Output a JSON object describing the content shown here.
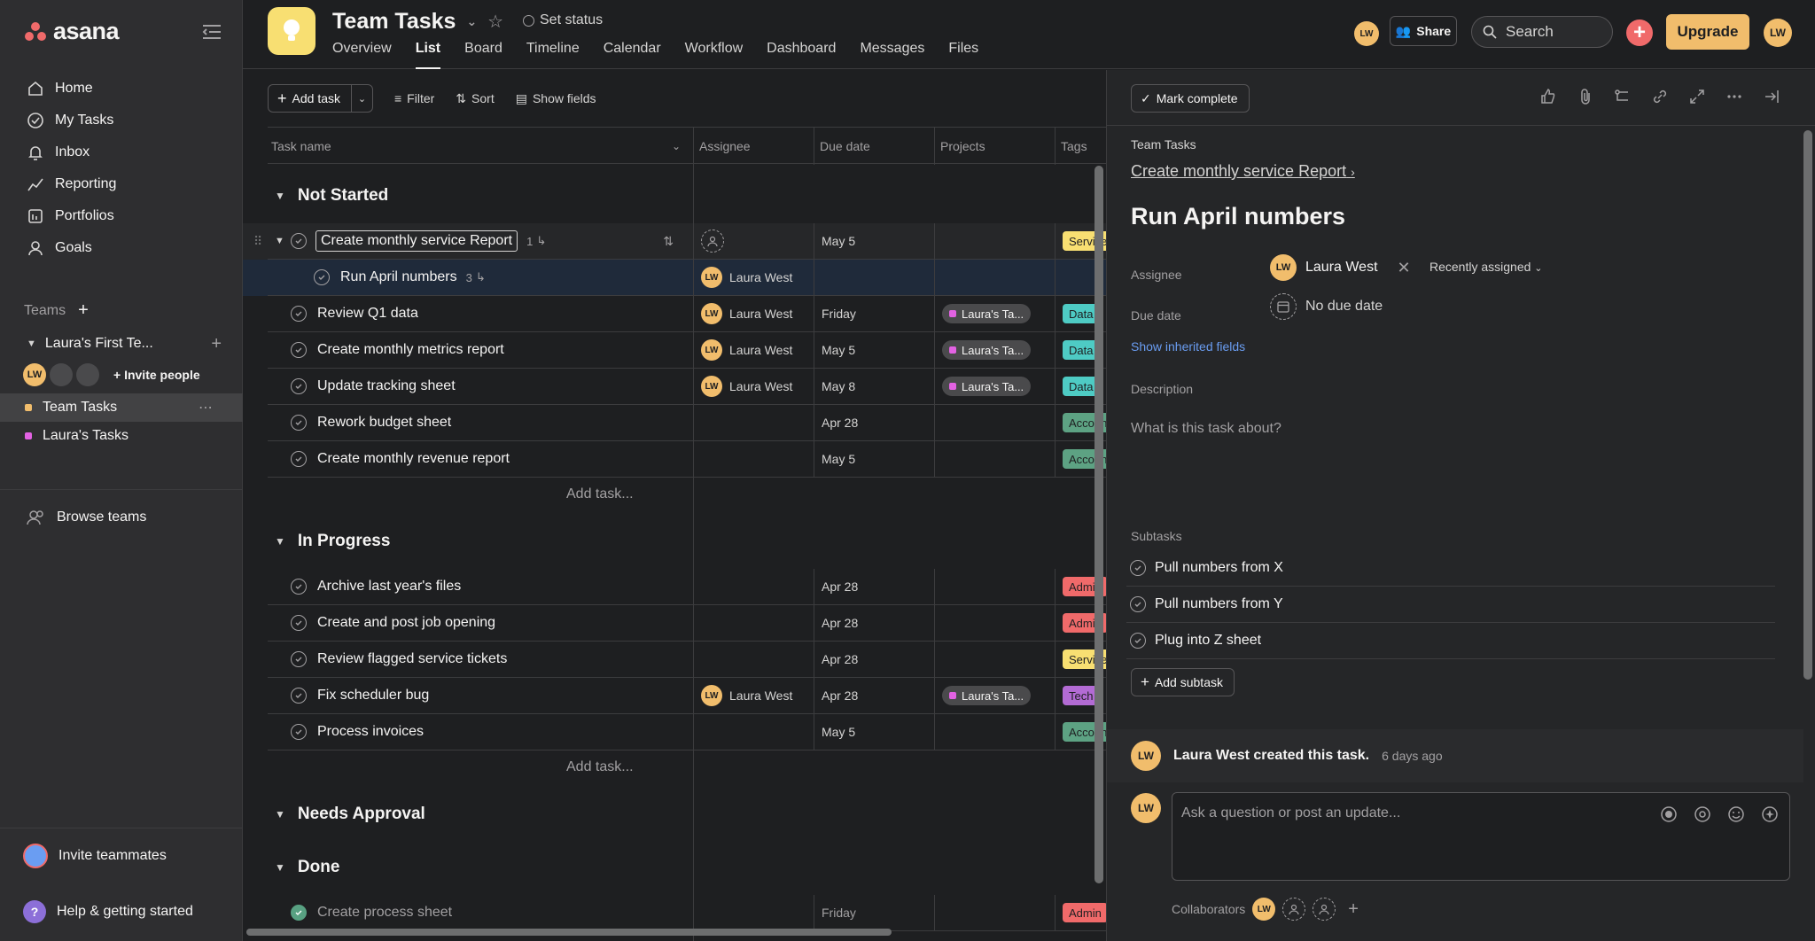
{
  "app": {
    "logo_text": "asana",
    "brand_color": "#f06a6a"
  },
  "sidebar": {
    "nav": [
      {
        "label": "Home",
        "icon": "home-icon"
      },
      {
        "label": "My Tasks",
        "icon": "check-circle-icon"
      },
      {
        "label": "Inbox",
        "icon": "bell-icon"
      },
      {
        "label": "Reporting",
        "icon": "chart-line-icon"
      },
      {
        "label": "Portfolios",
        "icon": "portfolio-icon"
      },
      {
        "label": "Goals",
        "icon": "person-icon"
      }
    ],
    "teams_label": "Teams",
    "team_name": "Laura's First Te...",
    "member_initials": "LW",
    "invite_people": "Invite people",
    "projects": [
      {
        "label": "Team Tasks",
        "color": "#f1bd6c",
        "active": true
      },
      {
        "label": "Laura's Tasks",
        "color": "#e362e3",
        "active": false
      }
    ],
    "browse_teams": "Browse teams",
    "invite_teammates": "Invite teammates",
    "help": "Help & getting started"
  },
  "header": {
    "project_title": "Team Tasks",
    "set_status": "Set status",
    "tabs": [
      "Overview",
      "List",
      "Board",
      "Timeline",
      "Calendar",
      "Workflow",
      "Dashboard",
      "Messages",
      "Files"
    ],
    "active_tab": "List",
    "user_initials": "LW",
    "share": "Share",
    "search_placeholder": "Search",
    "upgrade": "Upgrade"
  },
  "list": {
    "toolbar": {
      "add_task": "Add task",
      "filter": "Filter",
      "sort": "Sort",
      "show_fields": "Show fields"
    },
    "columns": [
      "Task name",
      "Assignee",
      "Due date",
      "Projects",
      "Tags"
    ],
    "add_task_row": "Add task...",
    "sections": [
      {
        "name": "Not Started",
        "tasks": [
          {
            "name": "Create monthly service Report",
            "subtasks": "1",
            "assignee": "",
            "due": "May 5",
            "project": "",
            "tag": "Service",
            "tag_color": "#f8df72"
          },
          {
            "name": "Run April numbers",
            "subtasks": "3",
            "assignee": "Laura West",
            "due": "",
            "project": "",
            "tag": "",
            "tag_color": ""
          },
          {
            "name": "Review Q1 data",
            "subtasks": "",
            "assignee": "Laura West",
            "due": "Friday",
            "project": "Laura's Ta...",
            "tag": "Data",
            "tag_color": "#4ecbc4"
          },
          {
            "name": "Create monthly metrics report",
            "subtasks": "",
            "assignee": "Laura West",
            "due": "May 5",
            "project": "Laura's Ta...",
            "tag": "Data",
            "tag_color": "#4ecbc4"
          },
          {
            "name": "Update tracking sheet",
            "subtasks": "",
            "assignee": "Laura West",
            "due": "May 8",
            "project": "Laura's Ta...",
            "tag": "Data",
            "tag_color": "#4ecbc4"
          },
          {
            "name": "Rework budget sheet",
            "subtasks": "",
            "assignee": "",
            "due": "Apr 28",
            "project": "",
            "tag": "Accounting",
            "tag_color": "#5da283"
          },
          {
            "name": "Create monthly revenue report",
            "subtasks": "",
            "assignee": "",
            "due": "May 5",
            "project": "",
            "tag": "Accounting",
            "tag_color": "#5da283"
          }
        ]
      },
      {
        "name": "In Progress",
        "tasks": [
          {
            "name": "Archive last year's files",
            "subtasks": "",
            "assignee": "",
            "due": "Apr 28",
            "project": "",
            "tag": "Admin",
            "tag_color": "#f06a6a"
          },
          {
            "name": "Create and post job opening",
            "subtasks": "",
            "assignee": "",
            "due": "Apr 28",
            "project": "",
            "tag": "Admin",
            "tag_color": "#f06a6a"
          },
          {
            "name": "Review flagged service tickets",
            "subtasks": "",
            "assignee": "",
            "due": "Apr 28",
            "project": "",
            "tag": "Service",
            "tag_color": "#f8df72"
          },
          {
            "name": "Fix scheduler bug",
            "subtasks": "",
            "assignee": "Laura West",
            "due": "Apr 28",
            "project": "Laura's Ta...",
            "tag": "Tech",
            "tag_color": "#b36bd4"
          },
          {
            "name": "Process invoices",
            "subtasks": "",
            "assignee": "",
            "due": "May 5",
            "project": "",
            "tag": "Accounting",
            "tag_color": "#5da283"
          }
        ]
      },
      {
        "name": "Needs Approval",
        "tasks": []
      },
      {
        "name": "Done",
        "tasks": [
          {
            "name": "Create process sheet",
            "subtasks": "",
            "assignee": "",
            "due": "Friday",
            "project": "",
            "tag": "Admin",
            "tag_color": "#f06a6a"
          }
        ]
      }
    ]
  },
  "detail": {
    "mark_complete": "Mark complete",
    "project": "Team Tasks",
    "parent_task": "Create monthly service Report",
    "title": "Run April numbers",
    "assignee_label": "Assignee",
    "assignee_name": "Laura West",
    "assignee_initials": "LW",
    "recently_assigned": "Recently assigned",
    "due_label": "Due date",
    "due_value": "No due date",
    "show_inherited": "Show inherited fields",
    "description_label": "Description",
    "description_placeholder": "What is this task about?",
    "subtasks_label": "Subtasks",
    "subtasks": [
      "Pull numbers from X",
      "Pull numbers from Y",
      "Plug into Z sheet"
    ],
    "add_subtask": "Add subtask",
    "activity_text": "Laura West created this task.",
    "activity_time": "6 days ago",
    "comment_placeholder": "Ask a question or post an update...",
    "collaborators_label": "Collaborators"
  }
}
